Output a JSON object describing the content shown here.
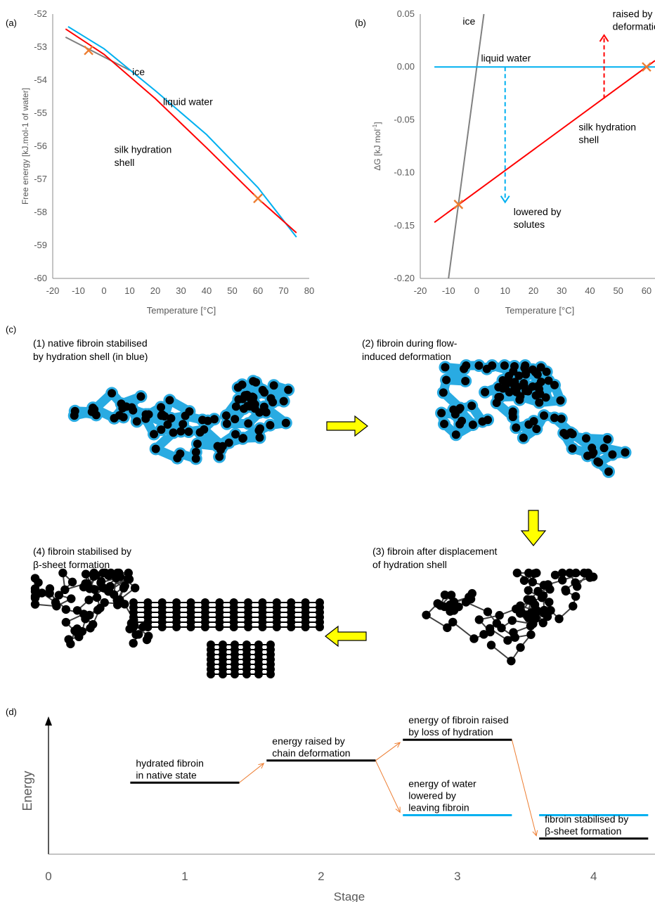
{
  "colors": {
    "ice": "#808080",
    "liquid": "#00B0F0",
    "silk": "#FF0000",
    "marker": "#ED7D31",
    "arrow": "#FFFF00",
    "chain": "#000000",
    "shell": "#29ABE2"
  },
  "chart_data": [
    {
      "panel": "(a)",
      "type": "line",
      "xlabel": "Temperature [°C]",
      "ylabel": "Free energy [kJ.mol-1 of water]",
      "xlim": [
        -20,
        80
      ],
      "ylim": [
        -60,
        -52
      ],
      "xticks": [
        "-20",
        "-10",
        "0",
        "10",
        "20",
        "30",
        "40",
        "50",
        "60",
        "70",
        "80"
      ],
      "yticks": [
        "-52",
        "-53",
        "-54",
        "-55",
        "-56",
        "-57",
        "-58",
        "-59",
        "-60"
      ],
      "grid": false,
      "series": [
        {
          "name": "ice",
          "color": "#808080",
          "x": [
            -15,
            10
          ],
          "y": [
            -52.7,
            -53.7
          ]
        },
        {
          "name": "liquid water",
          "color": "#00B0F0",
          "x": [
            -14,
            0,
            20,
            40,
            60,
            75
          ],
          "y": [
            -52.38,
            -53.05,
            -54.32,
            -55.65,
            -57.25,
            -58.75
          ]
        },
        {
          "name": "silk  hydration shell",
          "color": "#FF0000",
          "x": [
            -15,
            0,
            20,
            40,
            60,
            75
          ],
          "y": [
            -52.45,
            -53.22,
            -54.56,
            -56.05,
            -57.58,
            -58.62
          ]
        }
      ],
      "markers": [
        {
          "x": -6,
          "y": -53.1
        },
        {
          "x": 60,
          "y": -57.58
        }
      ],
      "annotations": [
        {
          "text": "ice",
          "x": 11,
          "y": -53.85
        },
        {
          "text": "liquid water",
          "x": 23,
          "y": -54.75
        },
        {
          "text": "silk  hydration",
          "x": 4,
          "y": -56.2
        },
        {
          "text": "shell",
          "x": 4,
          "y": -56.6
        }
      ]
    },
    {
      "panel": "(b)",
      "type": "line",
      "xlabel": "Temperature [°C]",
      "ylabel": "ΔG [kJ mol-1]",
      "xlim": [
        -20,
        63
      ],
      "ylim": [
        -0.2,
        0.05
      ],
      "xticks": [
        "-20",
        "-10",
        "0",
        "10",
        "20",
        "30",
        "40",
        "50",
        "60"
      ],
      "yticks": [
        "0.05",
        "0.00",
        "-0.05",
        "-0.10",
        "-0.15",
        "-0.20"
      ],
      "grid": false,
      "series": [
        {
          "name": "ice",
          "color": "#808080",
          "x": [
            -10,
            2.5
          ],
          "y": [
            -0.2,
            0.05
          ]
        },
        {
          "name": "liquid water",
          "color": "#00B0F0",
          "x": [
            -15,
            63
          ],
          "y": [
            0,
            0
          ]
        },
        {
          "name": "silk  hydration shell",
          "color": "#FF0000",
          "x": [
            -15,
            63
          ],
          "y": [
            -0.147,
            0.006
          ]
        }
      ],
      "markers": [
        {
          "x": -6.5,
          "y": -0.13
        },
        {
          "x": 60,
          "y": 0
        }
      ],
      "arrows": [
        {
          "x": 10,
          "from": 0,
          "to": -0.128,
          "color": "#00B0F0"
        },
        {
          "x": 45,
          "from": -0.03,
          "to": 0.03,
          "color": "#FF0000"
        }
      ],
      "annotations": [
        {
          "text": "ice",
          "x": -5,
          "y": 0.04
        },
        {
          "text": "liquid water",
          "x": 1.5,
          "y": 0.005
        },
        {
          "text": "silk  hydration",
          "x": 36,
          "y": -0.06
        },
        {
          "text": "shell",
          "x": 36,
          "y": -0.072
        },
        {
          "text": "lowered by",
          "x": 13,
          "y": -0.14
        },
        {
          "text": "solutes",
          "x": 13,
          "y": -0.152
        },
        {
          "text": "raised by chain",
          "x": 48,
          "y": 0.047
        },
        {
          "text": "deformation",
          "x": 48,
          "y": 0.035
        }
      ]
    },
    {
      "panel": "(d)",
      "type": "line",
      "xlabel": "Stage",
      "ylabel": "Energy",
      "xlim": [
        0,
        4.45
      ],
      "xticks": [
        "0",
        "1",
        "2",
        "3",
        "4"
      ],
      "grid": false,
      "levels": [
        {
          "label": "hydrated fibroin\nin native state",
          "x": [
            0.6,
            1.4
          ],
          "energy": 0.55,
          "color": "#000000"
        },
        {
          "label": "energy raised by\nchain deformation",
          "x": [
            1.6,
            2.4
          ],
          "energy": 0.72,
          "color": "#000000"
        },
        {
          "label": "energy of fibroin raised\nby loss of hydration",
          "x": [
            2.6,
            3.4
          ],
          "energy": 0.88,
          "color": "#000000"
        },
        {
          "label": "energy of water\nlowered by\nleaving fibroin",
          "x": [
            2.6,
            3.4
          ],
          "energy": 0.3,
          "color": "#00B0F0"
        },
        {
          "label": "",
          "x": [
            3.6,
            4.4
          ],
          "energy": 0.3,
          "color": "#00B0F0"
        },
        {
          "label": "fibroin stabilised by\nβ-sheet formation",
          "x": [
            3.6,
            4.4
          ],
          "energy": 0.12,
          "color": "#000000"
        }
      ]
    }
  ],
  "labels": {
    "panel_a": "(a)",
    "panel_b": "(b)",
    "panel_c": "(c)",
    "panel_d": "(d)",
    "b_ylabel_main": "ΔG [kJ mol",
    "b_ylabel_sup": "-1",
    "b_ylabel_end": "]",
    "c1_line1": "(1) native fibroin stabilised",
    "c1_line2": "by hydration shell (in blue)",
    "c2_line1": "(2) fibroin during flow-",
    "c2_line2": "induced deformation",
    "c3_line1": "(3) fibroin after displacement",
    "c3_line2": "of hydration shell",
    "c4_line1": "(4) fibroin stabilised by",
    "c4_line2": "β-sheet formation"
  }
}
